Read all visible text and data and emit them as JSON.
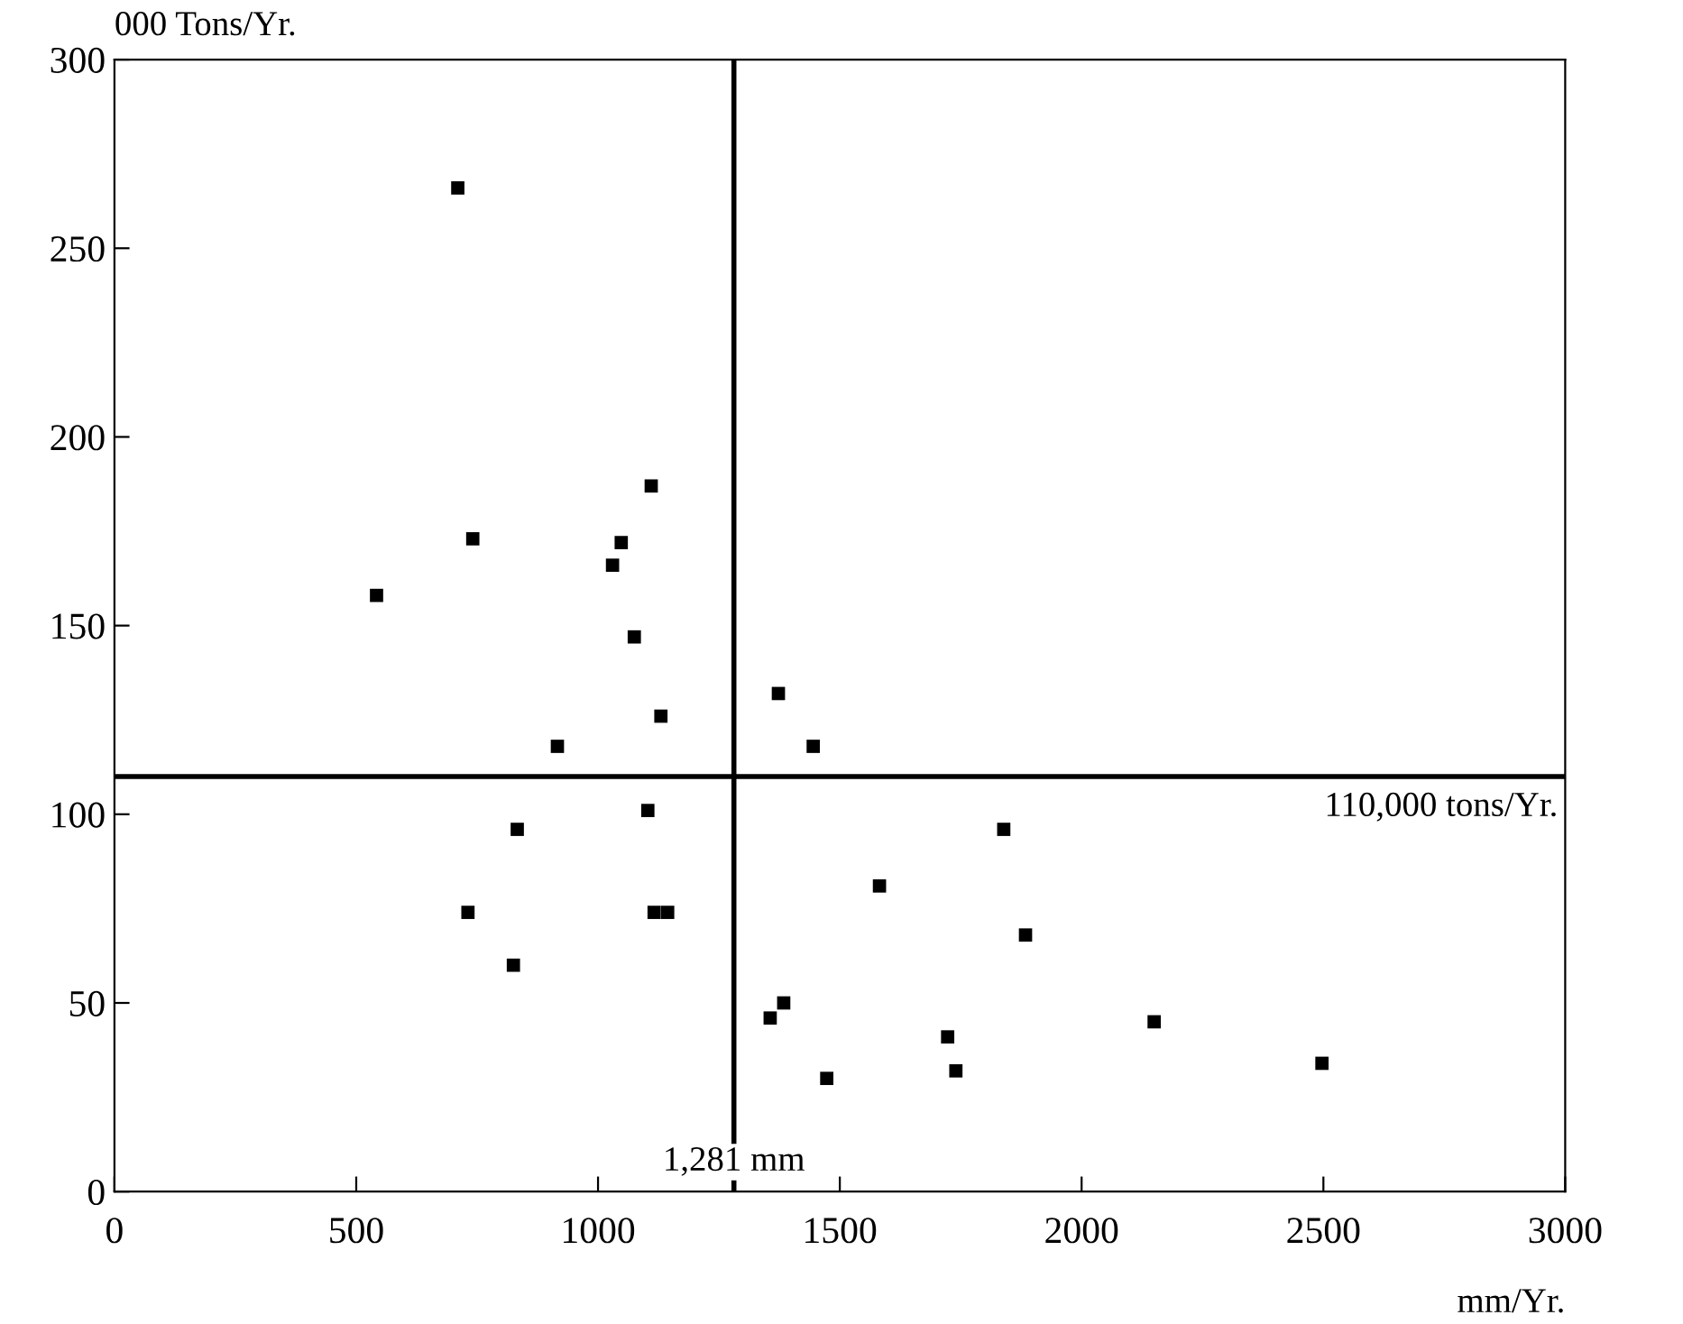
{
  "chart_data": {
    "type": "scatter",
    "xlabel": "mm/Yr.",
    "ylabel": "000 Tons/Yr.",
    "xlim": [
      0,
      3000
    ],
    "ylim": [
      0,
      300
    ],
    "xticks": [
      0,
      500,
      1000,
      1500,
      2000,
      2500,
      3000
    ],
    "yticks": [
      0,
      50,
      100,
      150,
      200,
      250,
      300
    ],
    "marker": "square",
    "grid": false,
    "legend": false,
    "series": [
      {
        "color": "#000000",
        "x": [
          710,
          542,
          741,
          1110,
          1048,
          1030,
          1075,
          916,
          1130,
          1103,
          833,
          731,
          1116,
          1144,
          825,
          1373,
          1356,
          1384,
          1445,
          1582,
          1839,
          1884,
          1473,
          1723,
          1740,
          2150,
          2497
        ],
        "values": [
          266,
          158,
          173,
          187,
          172,
          166,
          147,
          118,
          126,
          101,
          96,
          74,
          74,
          74,
          60,
          132,
          46,
          50,
          118,
          81,
          96,
          68,
          30,
          41,
          32,
          45,
          34
        ]
      }
    ],
    "ref_lines": [
      {
        "axis": "y",
        "value": 110,
        "label": "110,000 tons/Yr.",
        "color": "#000000"
      },
      {
        "axis": "x",
        "value": 1281,
        "label": "1,281 mm",
        "color": "#000000"
      }
    ]
  }
}
